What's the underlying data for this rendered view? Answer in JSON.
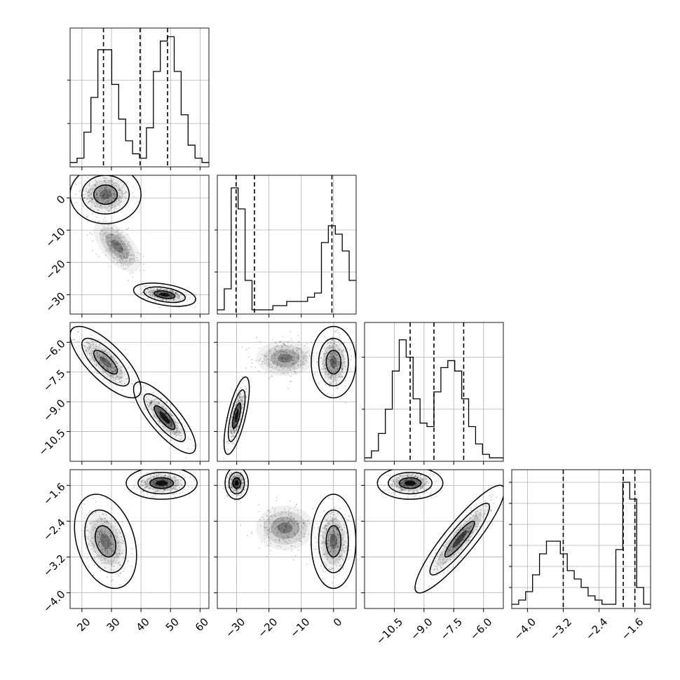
{
  "chart_data": {
    "type": "corner",
    "title": "",
    "grid": true,
    "legend": "none",
    "colors": {
      "line": "#000000",
      "grid": "#b0b0b0",
      "points": "#000000",
      "fill": "#000000",
      "background": "#ffffff"
    },
    "parameters": [
      {
        "index": 0,
        "range": [
          16,
          63
        ],
        "ticks": [
          20,
          30,
          40,
          50,
          60
        ],
        "tick_labels": [
          "20",
          "30",
          "40",
          "50",
          "60"
        ],
        "quantiles": [
          27.3,
          39.7,
          49.0
        ],
        "hist": {
          "x_start": 16,
          "bin_width": 2.35,
          "counts": [
            1,
            2,
            8,
            16,
            27,
            27,
            19,
            11,
            6,
            3,
            2,
            9,
            22,
            29,
            30,
            22,
            12,
            5,
            2,
            1
          ],
          "ymax": 32,
          "yticks": [
            10,
            20
          ]
        }
      },
      {
        "index": 1,
        "range": [
          -36,
          7
        ],
        "ticks": [
          -30,
          -20,
          -10,
          0
        ],
        "tick_labels": [
          "−30",
          "−20",
          "−10",
          "0"
        ],
        "quantiles": [
          -30.2,
          -24.5,
          -0.5
        ],
        "hist": {
          "x_start": -36,
          "bin_width": 2.15,
          "counts": [
            1,
            6,
            30,
            25,
            8,
            1,
            1,
            1,
            2,
            2,
            3,
            3,
            3,
            4,
            5,
            17,
            21,
            19,
            15,
            8
          ],
          "ymax": 33,
          "yticks": [
            10,
            20
          ]
        }
      },
      {
        "index": 2,
        "range": [
          -12,
          -5
        ],
        "ticks": [
          -10.5,
          -9.0,
          -7.5,
          -6.0
        ],
        "tick_labels": [
          "−10.5",
          "−9.0",
          "−7.5",
          "−6.0"
        ],
        "quantiles": [
          -9.7,
          -8.5,
          -7.0
        ],
        "hist": {
          "x_start": -12,
          "bin_width": 0.35,
          "counts": [
            1,
            3,
            8,
            15,
            26,
            35,
            30,
            18,
            11,
            10,
            20,
            27,
            29,
            26,
            18,
            10,
            5,
            2,
            1,
            1
          ],
          "ymax": 40,
          "yticks": [
            15,
            30
          ]
        }
      },
      {
        "index": 3,
        "range": [
          -4.35,
          -1.25
        ],
        "ticks": [
          -4.0,
          -3.2,
          -2.4,
          -1.6
        ],
        "tick_labels": [
          "−4.0",
          "−3.2",
          "−2.4",
          "−1.6"
        ],
        "quantiles": [
          -3.2,
          -1.86,
          -1.6
        ],
        "hist": {
          "x_start": -4.35,
          "bin_width": 0.155,
          "counts": [
            1,
            2,
            4,
            8,
            13,
            16,
            16,
            13,
            9,
            7,
            5,
            3,
            2,
            1,
            1,
            14,
            30,
            26,
            5,
            1
          ],
          "ymax": 33,
          "yticks": [
            5,
            10,
            15,
            20,
            25,
            30
          ]
        }
      }
    ],
    "pairs": [
      {
        "x_param": 0,
        "y_param": 1,
        "modes": [
          {
            "center": [
              28,
              1
            ],
            "sd": [
              4.0,
              3.0
            ],
            "rho": 0.0,
            "weight": 0.5,
            "pcolor": [
              0,
              0.16
            ]
          },
          {
            "center": [
              48,
              -30
            ],
            "sd": [
              3.5,
              1.2
            ],
            "rho": -0.4,
            "weight": 0.5,
            "pcolor": [
              0.88,
              0.5
            ]
          },
          {
            "center": [
              32,
              -15
            ],
            "sd": [
              4.0,
              4.0
            ],
            "rho": -0.6,
            "weight": 0.25,
            "pcolor": [
              0.08,
              0.04
            ]
          }
        ]
      },
      {
        "x_param": 0,
        "y_param": 2,
        "modes": [
          {
            "center": [
              28,
              -7.0
            ],
            "sd": [
              4.0,
              0.6
            ],
            "rho": -0.75,
            "weight": 0.5,
            "pcolor": [
              0.14,
              0.06
            ]
          },
          {
            "center": [
              48,
              -9.8
            ],
            "sd": [
              3.5,
              0.6
            ],
            "rho": -0.8,
            "weight": 0.5,
            "pcolor": [
              0.9,
              0.5
            ]
          }
        ]
      },
      {
        "x_param": 0,
        "y_param": 3,
        "modes": [
          {
            "center": [
              28,
              -2.85
            ],
            "sd": [
              3.5,
              0.35
            ],
            "rho": -0.3,
            "weight": 0.5,
            "pcolor": [
              0.1,
              0.08
            ]
          },
          {
            "center": [
              47,
              -1.55
            ],
            "sd": [
              4.0,
              0.12
            ],
            "rho": 0.0,
            "weight": 0.5,
            "pcolor": [
              0.95,
              0.55
            ]
          }
        ]
      },
      {
        "x_param": 1,
        "y_param": 2,
        "modes": [
          {
            "center": [
              -30,
              -9.7
            ],
            "sd": [
              1.3,
              0.65
            ],
            "rho": 0.7,
            "weight": 0.5,
            "pcolor": [
              0.85,
              0.45
            ]
          },
          {
            "center": [
              0,
              -7.0
            ],
            "sd": [
              2.3,
              0.6
            ],
            "rho": 0.0,
            "weight": 0.5,
            "pcolor": [
              0.1,
              0.04
            ]
          },
          {
            "center": [
              -15,
              -6.8
            ],
            "sd": [
              4.5,
              0.45
            ],
            "rho": 0.0,
            "weight": 0.3,
            "pcolor": [
              0.07,
              0.03
            ]
          }
        ]
      },
      {
        "x_param": 1,
        "y_param": 3,
        "modes": [
          {
            "center": [
              -30,
              -1.55
            ],
            "sd": [
              1.2,
              0.12
            ],
            "rho": 0.0,
            "weight": 0.5,
            "pcolor": [
              0.95,
              0.5
            ]
          },
          {
            "center": [
              0,
              -2.85
            ],
            "sd": [
              2.3,
              0.35
            ],
            "rho": 0.0,
            "weight": 0.5,
            "pcolor": [
              0.12,
              0.05
            ]
          },
          {
            "center": [
              -15,
              -2.55
            ],
            "sd": [
              4.5,
              0.25
            ],
            "rho": 0.0,
            "weight": 0.3,
            "pcolor": [
              0.07,
              0.03
            ]
          }
        ]
      },
      {
        "x_param": 2,
        "y_param": 3,
        "modes": [
          {
            "center": [
              -9.7,
              -1.55
            ],
            "sd": [
              0.55,
              0.12
            ],
            "rho": 0.0,
            "weight": 0.5,
            "pcolor": [
              0.95,
              0.5
            ]
          },
          {
            "center": [
              -7.2,
              -2.8
            ],
            "sd": [
              0.75,
              0.4
            ],
            "rho": 0.9,
            "weight": 0.5,
            "pcolor": [
              0.55,
              0.2
            ]
          }
        ]
      }
    ]
  }
}
